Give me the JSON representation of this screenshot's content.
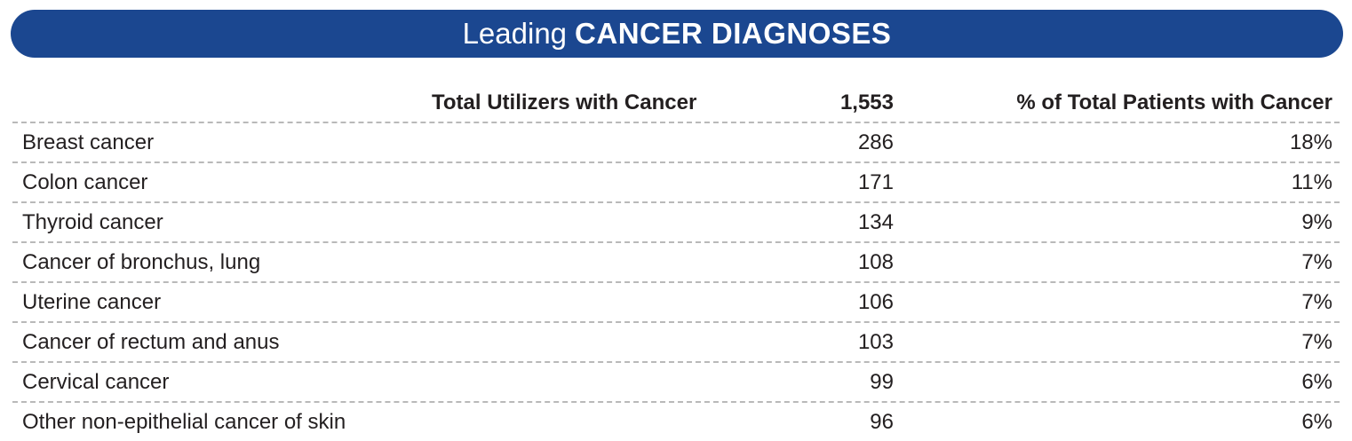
{
  "banner": {
    "title_light": "Leading",
    "title_bold": "CANCER DIAGNOSES"
  },
  "table": {
    "header": {
      "label": "Total Utilizers with Cancer",
      "total": "1,553",
      "pct_label": "% of Total Patients with Cancer"
    },
    "rows": [
      {
        "diagnosis": "Breast cancer",
        "count": "286",
        "pct": "18%"
      },
      {
        "diagnosis": "Colon cancer",
        "count": "171",
        "pct": "11%"
      },
      {
        "diagnosis": "Thyroid cancer",
        "count": "134",
        "pct": "9%"
      },
      {
        "diagnosis": "Cancer of bronchus, lung",
        "count": "108",
        "pct": "7%"
      },
      {
        "diagnosis": "Uterine cancer",
        "count": "106",
        "pct": "7%"
      },
      {
        "diagnosis": "Cancer of rectum and anus",
        "count": "103",
        "pct": "7%"
      },
      {
        "diagnosis": "Cervical cancer",
        "count": "99",
        "pct": "6%"
      },
      {
        "diagnosis": "Other non-epithelial cancer of skin",
        "count": "96",
        "pct": "6%"
      }
    ]
  },
  "colors": {
    "banner": "#1b4790",
    "text": "#231f20",
    "divider": "#b9b9b9"
  }
}
